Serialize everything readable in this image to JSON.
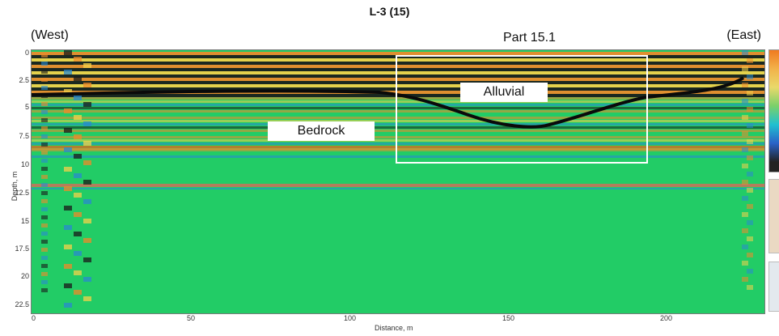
{
  "figure": {
    "title": "L-3 (15)",
    "west_label": "(West)",
    "east_label": "(East)",
    "part_label": "Part 15.1",
    "bedrock_label": "Bedrock",
    "alluvial_label": "Alluvial"
  },
  "axes": {
    "y_title": "Depth, m",
    "x_title": "Distance, m",
    "y_ticks": [
      "0",
      "2.5",
      "5",
      "7.5",
      "10",
      "12.5",
      "15",
      "17.5",
      "20",
      "22.5"
    ],
    "x_ticks": [
      "0",
      "50",
      "100",
      "150",
      "200"
    ]
  },
  "colors": {
    "background_green": "#22cc66",
    "band_orange": "#f08a2a",
    "band_yellow": "#f5d24a",
    "band_black": "#1a1a1a",
    "band_blue": "#2a8ad0",
    "boundary_line": "#0a0a0a",
    "box": "#ffffff"
  }
}
